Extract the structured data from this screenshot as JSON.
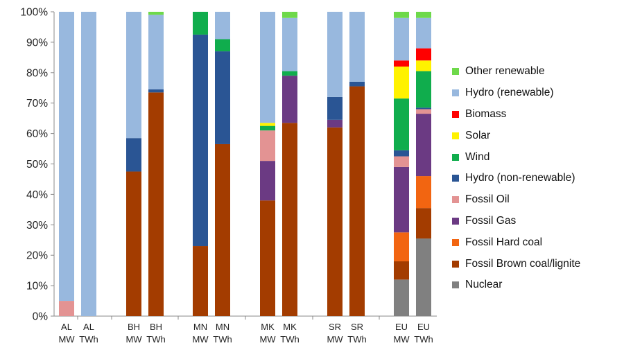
{
  "chart_data": {
    "type": "bar",
    "stacked": true,
    "ylim": [
      0,
      100
    ],
    "yticks": [
      "0%",
      "10%",
      "20%",
      "30%",
      "40%",
      "50%",
      "60%",
      "70%",
      "80%",
      "90%",
      "100%"
    ],
    "grid": false,
    "legend_position": "right",
    "categories": [
      {
        "country": "AL",
        "unit": "MW"
      },
      {
        "country": "AL",
        "unit": "TWh"
      },
      {
        "country": "BH",
        "unit": "MW"
      },
      {
        "country": "BH",
        "unit": "TWh"
      },
      {
        "country": "MN",
        "unit": "MW"
      },
      {
        "country": "MN",
        "unit": "TWh"
      },
      {
        "country": "MK",
        "unit": "MW"
      },
      {
        "country": "MK",
        "unit": "TWh"
      },
      {
        "country": "SR",
        "unit": "MW"
      },
      {
        "country": "SR",
        "unit": "TWh"
      },
      {
        "country": "EU",
        "unit": "MW"
      },
      {
        "country": "EU",
        "unit": "TWh"
      }
    ],
    "series": [
      {
        "name": "Nuclear",
        "color": "#808080",
        "values": [
          0,
          0,
          0,
          0,
          0,
          0,
          0,
          0,
          0,
          0,
          12,
          25.5
        ]
      },
      {
        "name": "Fossil Brown coal/lignite",
        "color": "#A33C00",
        "values": [
          0,
          0,
          47.5,
          73.5,
          23,
          56.5,
          38,
          63.5,
          62,
          75.5,
          6,
          10
        ]
      },
      {
        "name": "Fossil Hard coal",
        "color": "#F26511",
        "values": [
          0,
          0,
          0,
          0,
          0,
          0,
          0,
          0,
          0,
          0,
          9.5,
          10.5
        ]
      },
      {
        "name": "Fossil Gas",
        "color": "#6B3A83",
        "values": [
          0,
          0,
          0,
          0,
          0,
          0,
          13,
          15.5,
          2.5,
          0,
          21.5,
          20.5
        ]
      },
      {
        "name": "Fossil Oil",
        "color": "#E39393",
        "values": [
          5,
          0,
          0,
          0,
          0,
          0,
          10,
          0,
          0,
          0,
          3.5,
          1.5
        ]
      },
      {
        "name": "Hydro (non-renewable)",
        "color": "#2A5594",
        "values": [
          0,
          0,
          11,
          1,
          69.5,
          30.5,
          0,
          0,
          7.5,
          1.5,
          2,
          0.5
        ]
      },
      {
        "name": "Wind",
        "color": "#10AD4D",
        "values": [
          0,
          0,
          0,
          0,
          7.5,
          4,
          1.5,
          1.5,
          0,
          0,
          17,
          12
        ]
      },
      {
        "name": "Solar",
        "color": "#FFF200",
        "values": [
          0,
          0,
          0,
          0,
          0,
          0,
          1,
          0,
          0,
          0,
          10.5,
          3.5
        ]
      },
      {
        "name": "Biomass",
        "color": "#FF0000",
        "values": [
          0,
          0,
          0,
          0,
          0,
          0,
          0,
          0,
          0,
          0,
          2,
          4
        ]
      },
      {
        "name": "Hydro (renewable)",
        "color": "#98B8DE",
        "values": [
          95,
          100,
          41.5,
          24.5,
          0,
          9,
          36.5,
          17.5,
          28,
          23,
          14,
          10
        ]
      },
      {
        "name": "Other renewable",
        "color": "#6ED94A",
        "values": [
          0,
          0,
          0,
          1,
          0,
          0,
          0,
          2,
          0,
          0,
          2,
          2
        ]
      }
    ]
  }
}
